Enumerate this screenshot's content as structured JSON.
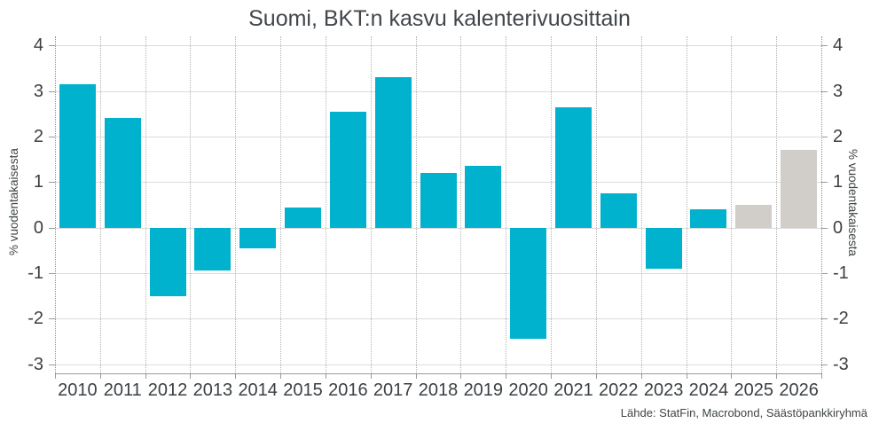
{
  "chart": {
    "title": "Suomi, BKT:n kasvu kalenterivuosittain",
    "ylabel_left": "% vuodentakaisesta",
    "ylabel_right": "% vuodentakaisesta",
    "source": "Lähde: StatFin, Macrobond, Säästöpankkiryhmä"
  },
  "chart_data": {
    "type": "bar",
    "title": "Suomi, BKT:n kasvu kalenterivuosittain",
    "xlabel": "",
    "ylabel": "% vuodentakaisesta",
    "ylabel_right": "% vuodentakaisesta",
    "source": "Lähde: StatFin, Macrobond, Säästöpankkiryhmä",
    "categories": [
      "2010",
      "2011",
      "2012",
      "2013",
      "2014",
      "2015",
      "2016",
      "2017",
      "2018",
      "2019",
      "2020",
      "2021",
      "2022",
      "2023",
      "2024",
      "2025",
      "2026"
    ],
    "series": [
      {
        "name": "BKT:n kasvu",
        "values": [
          3.15,
          2.4,
          -1.5,
          -0.95,
          -0.45,
          0.45,
          2.55,
          3.3,
          1.2,
          1.35,
          -2.45,
          2.65,
          0.75,
          -0.9,
          0.4,
          0.5,
          1.7
        ]
      }
    ],
    "forecast_flags": [
      false,
      false,
      false,
      false,
      false,
      false,
      false,
      false,
      false,
      false,
      false,
      false,
      false,
      false,
      false,
      true,
      true
    ],
    "yticks": [
      4,
      3,
      2,
      1,
      0,
      -1,
      -2,
      -3
    ],
    "ylim": [
      -3.2,
      4.2
    ],
    "grid": true,
    "legend_position": "none",
    "colors": {
      "actual": "#00b2cd",
      "forecast": "#d1cdc9",
      "gridline": "#dcdcdc",
      "axis": "#9a9a9a",
      "text": "#3c4043",
      "title_text": "#41464b"
    }
  }
}
